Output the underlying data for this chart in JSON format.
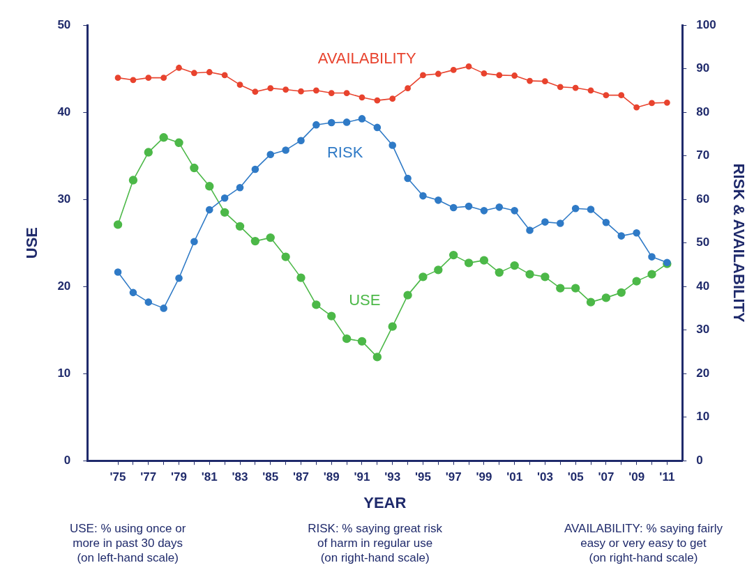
{
  "chart_data": {
    "type": "line",
    "xlabel": "YEAR",
    "ylabel": "USE",
    "y2label": "RISK & AVAILABILITY",
    "x": [
      1975,
      1976,
      1977,
      1978,
      1979,
      1980,
      1981,
      1982,
      1983,
      1984,
      1985,
      1986,
      1987,
      1988,
      1989,
      1990,
      1991,
      1992,
      1993,
      1994,
      1995,
      1996,
      1997,
      1998,
      1999,
      2000,
      2001,
      2002,
      2003,
      2004,
      2005,
      2006,
      2007,
      2008,
      2009,
      2010,
      2011
    ],
    "xlim": [
      1973,
      2012
    ],
    "xticks": [
      {
        "value": 1975,
        "label": "'75"
      },
      {
        "value": 1976,
        "label": null
      },
      {
        "value": 1977,
        "label": "'77"
      },
      {
        "value": 1978,
        "label": null
      },
      {
        "value": 1979,
        "label": "'79"
      },
      {
        "value": 1980,
        "label": null
      },
      {
        "value": 1981,
        "label": "'81"
      },
      {
        "value": 1982,
        "label": null
      },
      {
        "value": 1983,
        "label": "'83"
      },
      {
        "value": 1984,
        "label": null
      },
      {
        "value": 1985,
        "label": "'85"
      },
      {
        "value": 1986,
        "label": null
      },
      {
        "value": 1987,
        "label": "'87"
      },
      {
        "value": 1988,
        "label": null
      },
      {
        "value": 1989,
        "label": "'89"
      },
      {
        "value": 1990,
        "label": null
      },
      {
        "value": 1991,
        "label": "'91"
      },
      {
        "value": 1992,
        "label": null
      },
      {
        "value": 1993,
        "label": "'93"
      },
      {
        "value": 1994,
        "label": null
      },
      {
        "value": 1995,
        "label": "'95"
      },
      {
        "value": 1996,
        "label": null
      },
      {
        "value": 1997,
        "label": "'97"
      },
      {
        "value": 1998,
        "label": null
      },
      {
        "value": 1999,
        "label": "'99"
      },
      {
        "value": 2000,
        "label": null
      },
      {
        "value": 2001,
        "label": "'01"
      },
      {
        "value": 2002,
        "label": null
      },
      {
        "value": 2003,
        "label": "'03"
      },
      {
        "value": 2004,
        "label": null
      },
      {
        "value": 2005,
        "label": "'05"
      },
      {
        "value": 2006,
        "label": null
      },
      {
        "value": 2007,
        "label": "'07"
      },
      {
        "value": 2008,
        "label": null
      },
      {
        "value": 2009,
        "label": "'09"
      },
      {
        "value": 2010,
        "label": null
      },
      {
        "value": 2011,
        "label": "'11"
      }
    ],
    "ylim": [
      0,
      50
    ],
    "yticks": [
      0,
      10,
      20,
      30,
      40,
      50
    ],
    "y2lim": [
      0,
      100
    ],
    "y2ticks": [
      0,
      10,
      20,
      30,
      40,
      50,
      60,
      70,
      80,
      90,
      100
    ],
    "grid": false,
    "legend": false,
    "marker": "circle",
    "line_style": "solid",
    "series": [
      {
        "name": "USE",
        "color": "#4cb848",
        "values": [
          27.1,
          32.2,
          35.4,
          37.1,
          36.5,
          33.6,
          31.5,
          28.5,
          26.9,
          25.2,
          25.6,
          23.4,
          21.0,
          17.9,
          16.6,
          14.0,
          13.7,
          11.9,
          15.4,
          19.0,
          21.1,
          21.9,
          23.6,
          22.7,
          23.0,
          21.6,
          22.4,
          21.4,
          21.1,
          19.8,
          19.8,
          18.2,
          18.7,
          19.3,
          20.6,
          21.4,
          22.6
        ]
      },
      {
        "name": "RISK",
        "color": "#2f7ac6",
        "axis": "y2",
        "values": [
          43.3,
          38.6,
          36.4,
          35.0,
          41.9,
          50.3,
          57.6,
          60.3,
          62.7,
          66.9,
          70.3,
          71.3,
          73.5,
          77.1,
          77.6,
          77.7,
          78.5,
          76.5,
          72.4,
          64.8,
          60.8,
          59.8,
          58.1,
          58.4,
          57.4,
          58.2,
          57.4,
          52.9,
          54.8,
          54.5,
          57.9,
          57.7,
          54.7,
          51.6,
          52.3,
          46.8,
          45.5
        ]
      },
      {
        "name": "AVAILABILITY",
        "color": "#e8432e",
        "axis": "y2",
        "values": [
          87.9,
          87.4,
          87.9,
          87.9,
          90.2,
          89.0,
          89.2,
          88.5,
          86.3,
          84.7,
          85.5,
          85.2,
          84.8,
          85.0,
          84.4,
          84.4,
          83.4,
          82.7,
          83.1,
          85.5,
          88.5,
          88.8,
          89.7,
          90.5,
          88.9,
          88.5,
          88.4,
          87.2,
          87.1,
          85.8,
          85.6,
          85.0,
          83.9,
          83.9,
          81.1,
          82.1,
          82.2
        ]
      }
    ],
    "annotations": [
      "USE: % using once or\nmore in past 30 days\n(on left-hand scale)",
      "RISK: % saying great risk\nof harm in regular use\n(on right-hand scale)",
      "AVAILABILITY: % saying fairly\neasy or very easy to get\n(on right-hand scale)"
    ]
  }
}
